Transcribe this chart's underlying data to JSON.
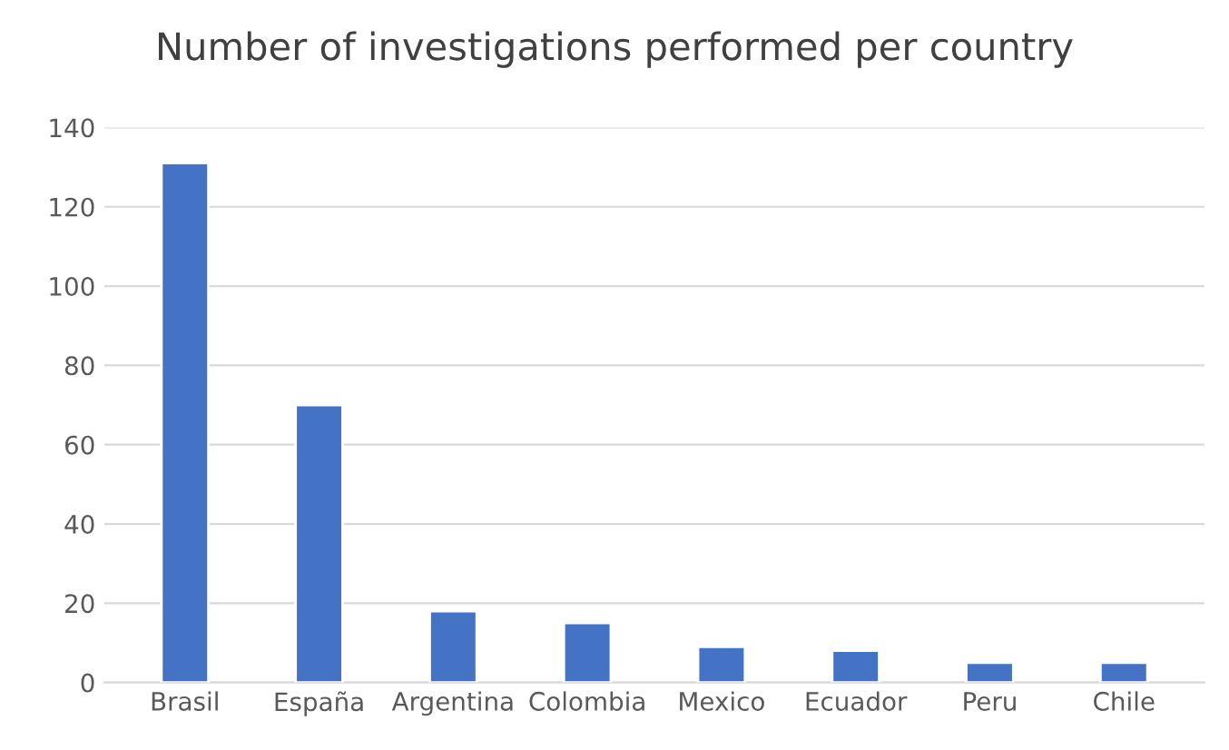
{
  "chart_data": {
    "type": "bar",
    "title": "Number of investigations performed per country",
    "categories": [
      "Brasil",
      "España",
      "Argentina",
      "Colombia",
      "Mexico",
      "Ecuador",
      "Peru",
      "Chile"
    ],
    "values": [
      131,
      70,
      18,
      15,
      9,
      8,
      5,
      5
    ],
    "color": "#4472c4",
    "ylim": [
      0,
      140
    ],
    "yticks": [
      0,
      20,
      40,
      60,
      80,
      100,
      120,
      140
    ],
    "grid": "y"
  }
}
